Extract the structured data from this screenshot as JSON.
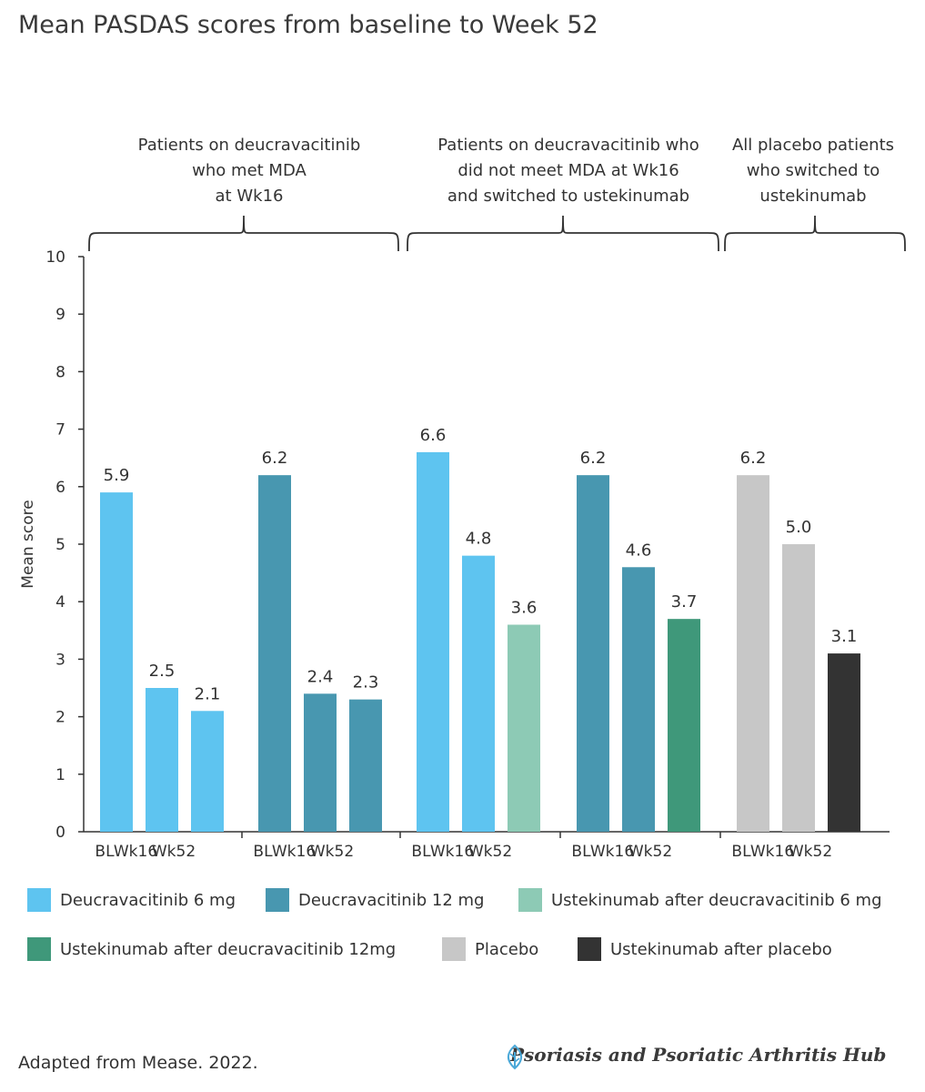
{
  "chart_data": {
    "type": "bar",
    "title": "Mean PASDAS scores from baseline to Week 52",
    "ylabel": "Mean score",
    "ylim": [
      0,
      10
    ],
    "yticks": [
      0,
      1,
      2,
      3,
      4,
      5,
      6,
      7,
      8,
      9,
      10
    ],
    "x_labels": [
      "BL",
      "Wk16",
      "Wk52"
    ],
    "groups": [
      {
        "lines": [
          "Patients on deucravacitinib",
          "who met MDA",
          "at Wk16"
        ],
        "panels": [
          0,
          1
        ]
      },
      {
        "lines": [
          "Patients on deucravacitinib who",
          "did not meet MDA at Wk16",
          "and switched to ustekinumab"
        ],
        "panels": [
          2,
          3
        ]
      },
      {
        "lines": [
          "All placebo patients",
          "who switched to",
          "ustekinumab"
        ],
        "panels": [
          4
        ]
      }
    ],
    "panels": [
      {
        "bars": [
          {
            "label": "BL",
            "value": 5.9,
            "value_label": "5.9",
            "series": "Deucravacitinib 6 mg"
          },
          {
            "label": "Wk16",
            "value": 2.5,
            "value_label": "2.5",
            "series": "Deucravacitinib 6 mg"
          },
          {
            "label": "Wk52",
            "value": 2.1,
            "value_label": "2.1",
            "series": "Deucravacitinib 6 mg"
          }
        ]
      },
      {
        "bars": [
          {
            "label": "BL",
            "value": 6.2,
            "value_label": "6.2",
            "series": "Deucravacitinib 12 mg"
          },
          {
            "label": "Wk16",
            "value": 2.4,
            "value_label": "2.4",
            "series": "Deucravacitinib 12 mg"
          },
          {
            "label": "Wk52",
            "value": 2.3,
            "value_label": "2.3",
            "series": "Deucravacitinib 12 mg"
          }
        ]
      },
      {
        "bars": [
          {
            "label": "BL",
            "value": 6.6,
            "value_label": "6.6",
            "series": "Deucravacitinib 6 mg"
          },
          {
            "label": "Wk16",
            "value": 4.8,
            "value_label": "4.8",
            "series": "Deucravacitinib 6 mg"
          },
          {
            "label": "Wk52",
            "value": 3.6,
            "value_label": "3.6",
            "series": "Ustekinumab after deucravacitinib 6 mg"
          }
        ]
      },
      {
        "bars": [
          {
            "label": "BL",
            "value": 6.2,
            "value_label": "6.2",
            "series": "Deucravacitinib 12 mg"
          },
          {
            "label": "Wk16",
            "value": 4.6,
            "value_label": "4.6",
            "series": "Deucravacitinib 12 mg"
          },
          {
            "label": "Wk52",
            "value": 3.7,
            "value_label": "3.7",
            "series": "Ustekinumab after deucravacitinib 12mg"
          }
        ]
      },
      {
        "bars": [
          {
            "label": "BL",
            "value": 6.2,
            "value_label": "6.2",
            "series": "Placebo"
          },
          {
            "label": "Wk16",
            "value": 5.0,
            "value_label": "5.0",
            "series": "Placebo"
          },
          {
            "label": "Wk52",
            "value": 3.1,
            "value_label": "3.1",
            "series": "Ustekinumab after placebo"
          }
        ]
      }
    ],
    "legend": [
      {
        "name": "Deucravacitinib 6 mg",
        "color": "#5ec4f0"
      },
      {
        "name": "Deucravacitinib 12 mg",
        "color": "#4897b0"
      },
      {
        "name": "Ustekinumab after deucravacitinib 6 mg",
        "color": "#8dcab5"
      },
      {
        "name": "Ustekinumab after deucravacitinib 12mg",
        "color": "#3f987a"
      },
      {
        "name": "Placebo",
        "color": "#c7c7c7"
      },
      {
        "name": "Ustekinumab after placebo",
        "color": "#333333"
      }
    ]
  },
  "footer": {
    "source": "Adapted from Mease. 2022.",
    "brand": "Psoriasis and Psoriatic Arthritis Hub",
    "brand_icon": "leaf-icon"
  }
}
